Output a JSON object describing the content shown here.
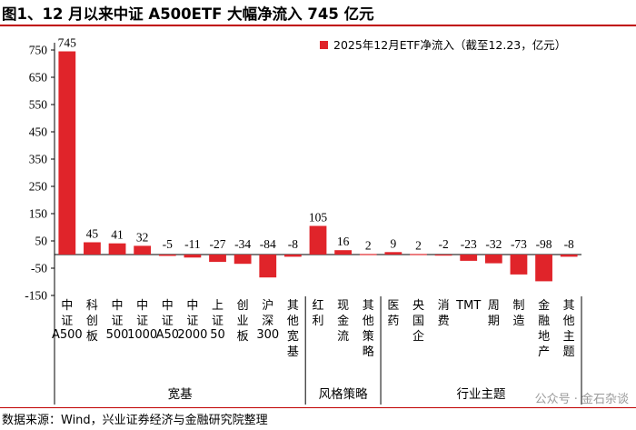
{
  "title": "图1、12 月以来中证 A500ETF 大幅净流入 745 亿元",
  "source": "数据来源：Wind，兴业证券经济与金融研究院整理",
  "watermark": "公众号 · 金石杂谈",
  "colors": {
    "bar": "#e0242a",
    "accent_rule": "#c00000"
  },
  "chart_data": {
    "type": "bar",
    "categories": [
      "中证A500",
      "科创板",
      "中证500",
      "中证1000",
      "中证A50",
      "中证2000",
      "上证50",
      "创业板",
      "沪深300",
      "其他宽基",
      "红利",
      "现金流",
      "其他策略",
      "医药",
      "央国企",
      "消费",
      "TMT",
      "周期",
      "制造",
      "金融地产",
      "其他主题"
    ],
    "series": [
      {
        "name": "2025年12月ETF净流入（截至12.23，亿元）",
        "values": [
          745,
          45,
          41,
          32,
          -5,
          -11,
          -27,
          -34,
          -84,
          -8,
          105,
          16,
          2,
          9,
          2,
          -2,
          -23,
          -32,
          -73,
          -98,
          -8
        ]
      }
    ],
    "data_labels": [
      "745",
      "45",
      "41",
      "32",
      "-5",
      "-11",
      "-27",
      "-34",
      "-84",
      "-8",
      "105",
      "16",
      "2",
      "9",
      "2",
      "-2",
      "-23",
      "-32",
      "-73",
      "-98",
      "-8"
    ],
    "ylim": [
      -150,
      750
    ],
    "yticks": [
      "750",
      "650",
      "550",
      "450",
      "350",
      "250",
      "150",
      "50",
      "-50",
      "-150"
    ],
    "ytick_values": [
      750,
      650,
      550,
      450,
      350,
      250,
      150,
      50,
      -50,
      -150
    ],
    "groups": [
      {
        "label": "宽基",
        "start": 0,
        "end": 9
      },
      {
        "label": "风格策略",
        "start": 10,
        "end": 12
      },
      {
        "label": "行业主题",
        "start": 13,
        "end": 20
      }
    ],
    "legend_position": "top-right",
    "grid": false
  }
}
